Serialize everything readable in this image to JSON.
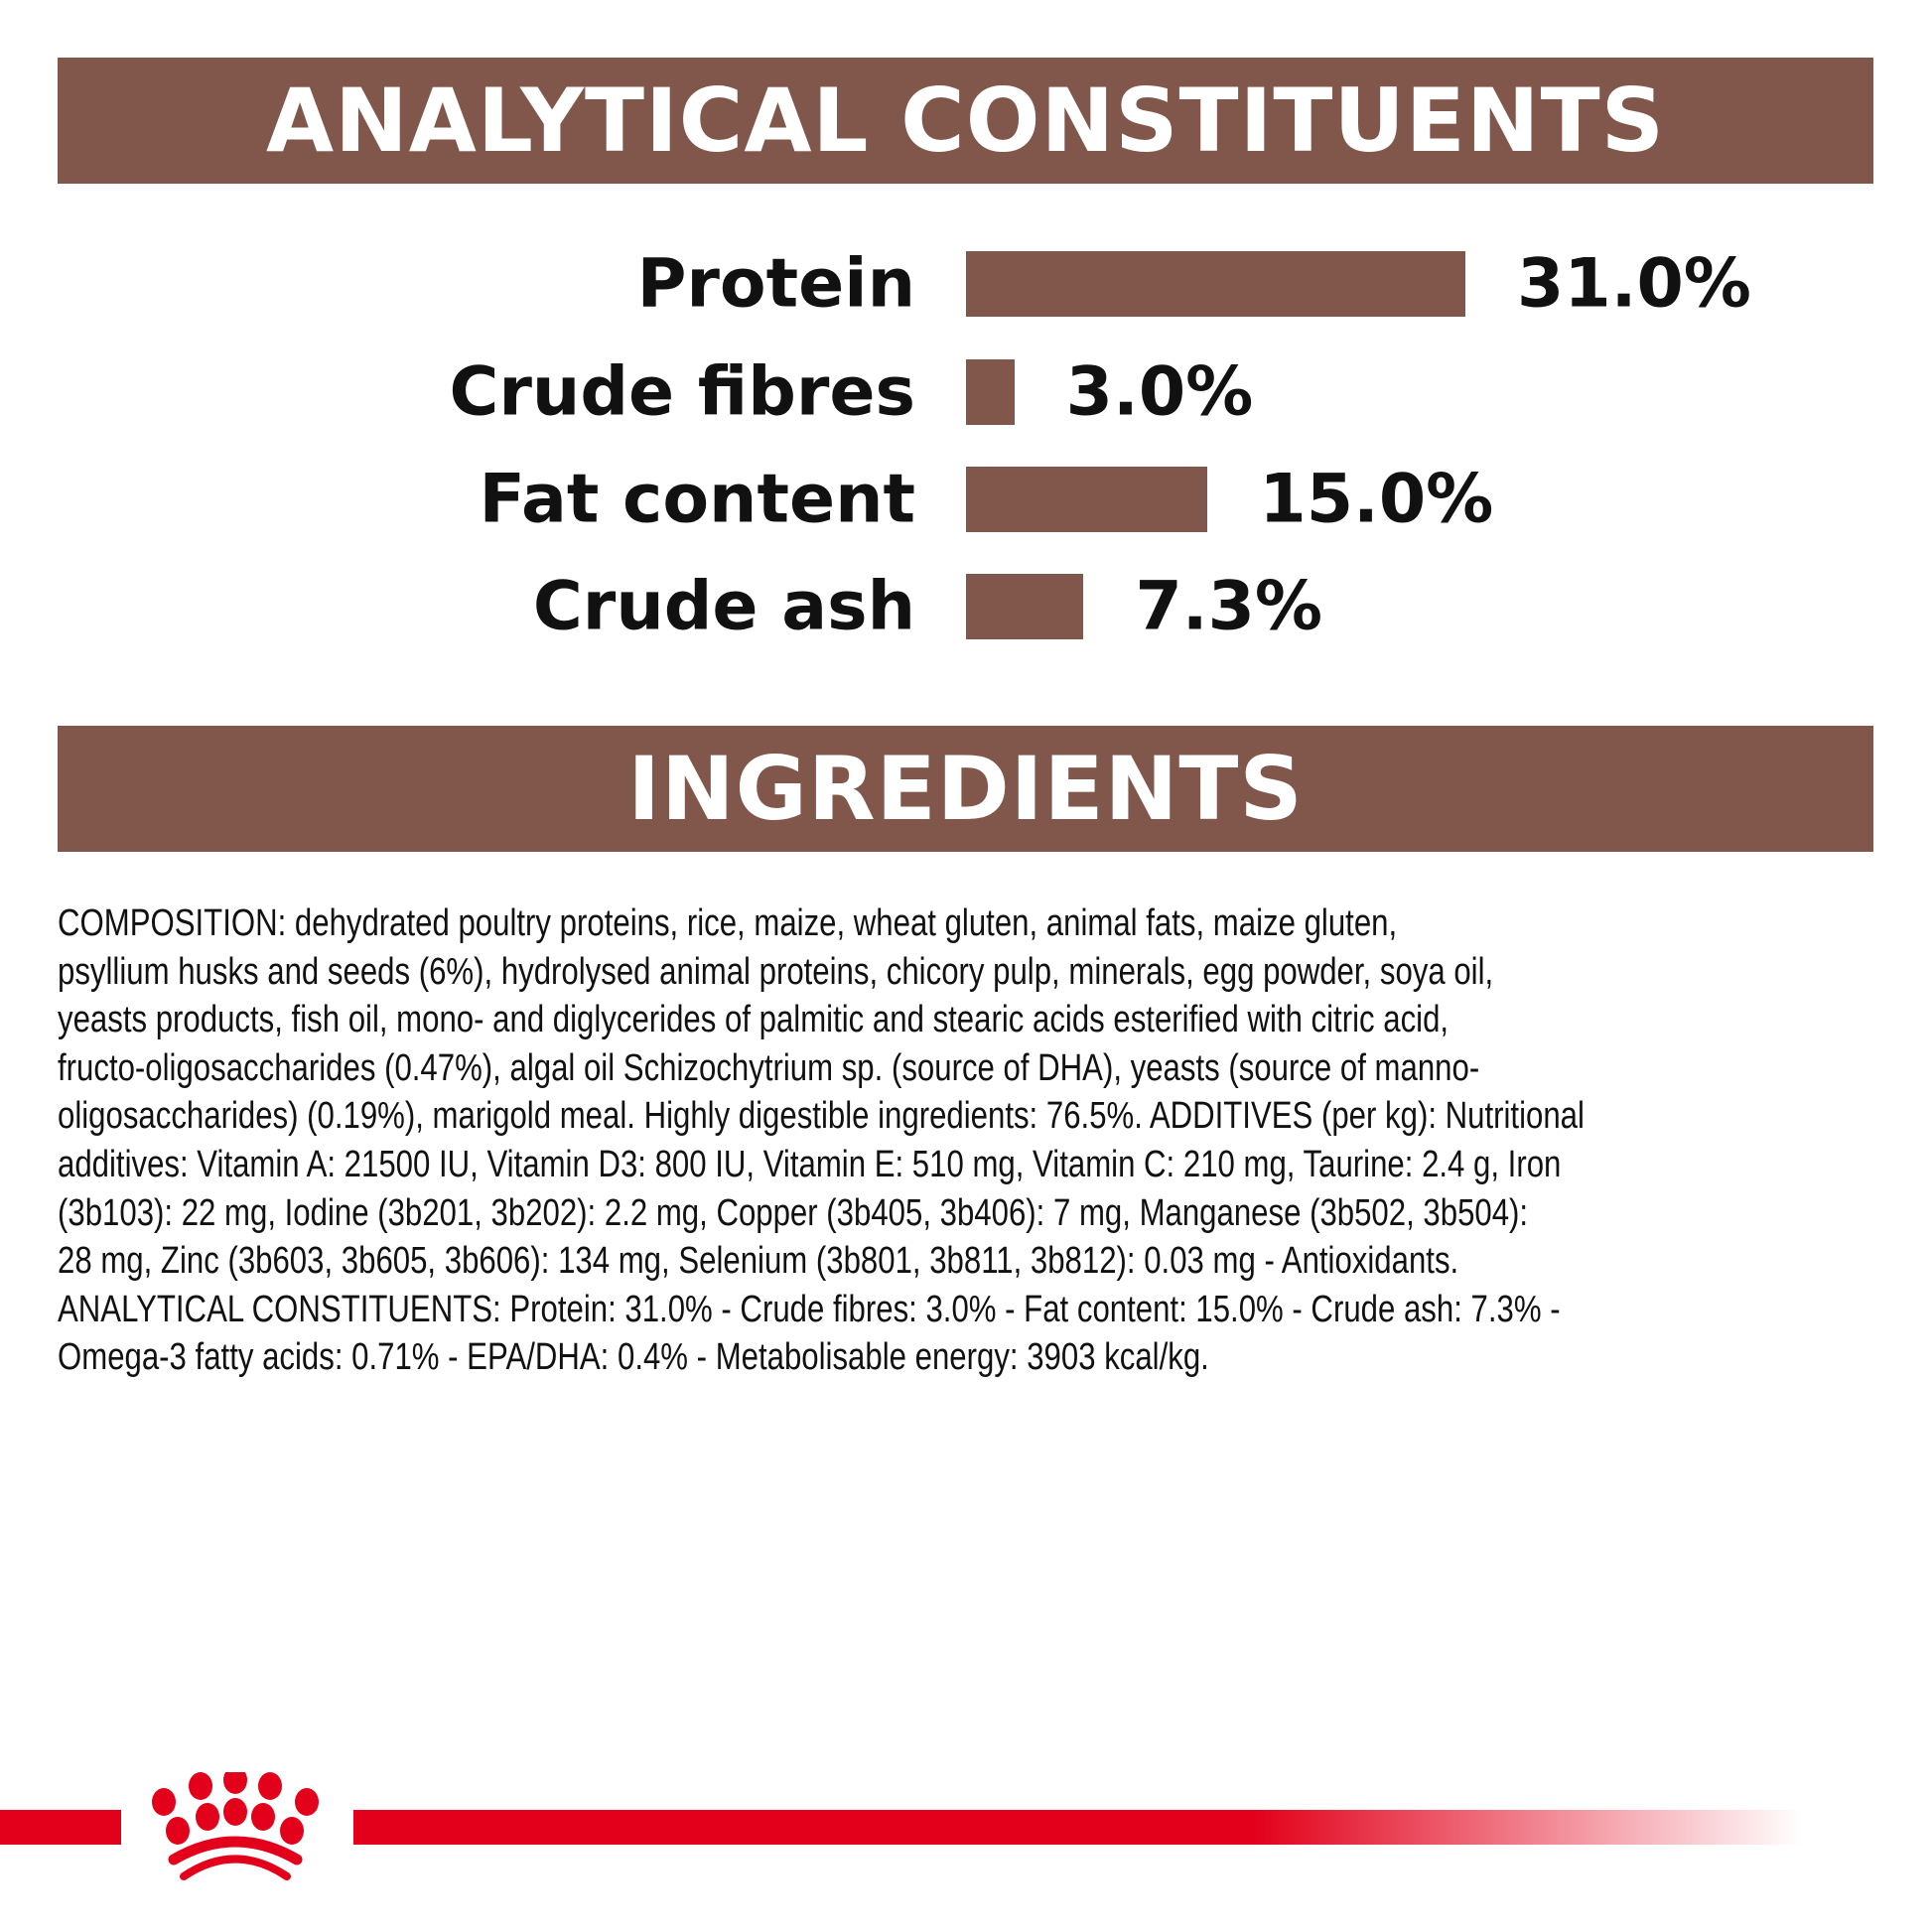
{
  "analytical": {
    "title": "ANALYTICAL CONSTITUENTS",
    "unit_max": 31.0,
    "items": [
      {
        "label": "Protein",
        "value": 31.0,
        "display": "31.0%"
      },
      {
        "label": "Crude fibres",
        "value": 3.0,
        "display": "3.0%"
      },
      {
        "label": "Fat content",
        "value": 15.0,
        "display": "15.0%"
      },
      {
        "label": "Crude ash",
        "value": 7.3,
        "display": "7.3%"
      }
    ],
    "bar_color": "#82574B"
  },
  "ingredients": {
    "title": "INGREDIENTS",
    "lines": [
      "COMPOSITION: dehydrated poultry proteins, rice, maize, wheat gluten, animal fats, maize gluten,",
      "psyllium husks and seeds (6%), hydrolysed animal proteins, chicory pulp, minerals, egg powder, soya oil,",
      "yeasts products, fish oil, mono- and diglycerides of palmitic and stearic acids esterified with citric acid,",
      "fructo-oligosaccharides (0.47%), algal oil Schizochytrium sp. (source of DHA), yeasts (source of manno-",
      "oligosaccharides) (0.19%), marigold meal. Highly digestible ingredients: 76.5%. ADDITIVES (per kg): Nutritional",
      "additives: Vitamin A: 21500 IU, Vitamin D3: 800 IU, Vitamin E: 510 mg, Vitamin C: 210 mg, Taurine: 2.4 g, Iron",
      "(3b103): 22 mg, Iodine (3b201, 3b202): 2.2 mg, Copper (3b405, 3b406): 7 mg, Manganese (3b502, 3b504):",
      "28 mg, Zinc (3b603, 3b605, 3b606): 134 mg, Selenium (3b801, 3b811, 3b812): 0.03 mg - Antioxidants.",
      "ANALYTICAL CONSTITUENTS: Protein: 31.0% - Crude fibres: 3.0% - Fat content: 15.0% - Crude ash: 7.3% -",
      "Omega-3 fatty acids: 0.71% - EPA/DHA: 0.4% - Metabolisable energy: 3903 kcal/kg."
    ]
  },
  "brand": {
    "logo": "crown-logo",
    "color": "#E2001A"
  }
}
